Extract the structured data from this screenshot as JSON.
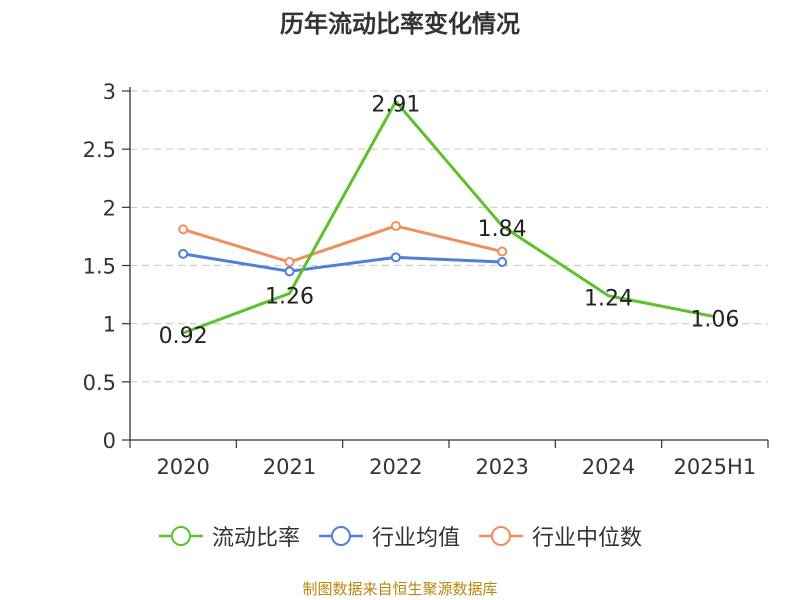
{
  "title": "历年流动比率变化情况",
  "source": "制图数据来自恒生聚源数据库",
  "chart_data": {
    "type": "line",
    "title": "历年流动比率变化情况",
    "categories": [
      "2020",
      "2021",
      "2022",
      "2023",
      "2024",
      "2025H1"
    ],
    "y_ticks": [
      "0",
      "0.5",
      "1",
      "1.5",
      "2",
      "2.5",
      "3"
    ],
    "ylim": [
      0,
      3
    ],
    "grid": true,
    "legend_position": "bottom",
    "series": [
      {
        "name": "流动比率",
        "color": "#5ec12b",
        "values": [
          0.92,
          1.26,
          2.91,
          1.84,
          1.24,
          1.06
        ],
        "labels": [
          "0.92",
          "1.26",
          "2.91",
          "1.84",
          "1.24",
          "1.06"
        ],
        "markers": false
      },
      {
        "name": "行业均值",
        "color": "#4f7fd8",
        "values": [
          1.6,
          1.45,
          1.57,
          1.53,
          null,
          null
        ],
        "markers": true
      },
      {
        "name": "行业中位数",
        "color": "#f28e5d",
        "values": [
          1.81,
          1.53,
          1.84,
          1.62,
          null,
          null
        ],
        "markers": true
      }
    ]
  }
}
